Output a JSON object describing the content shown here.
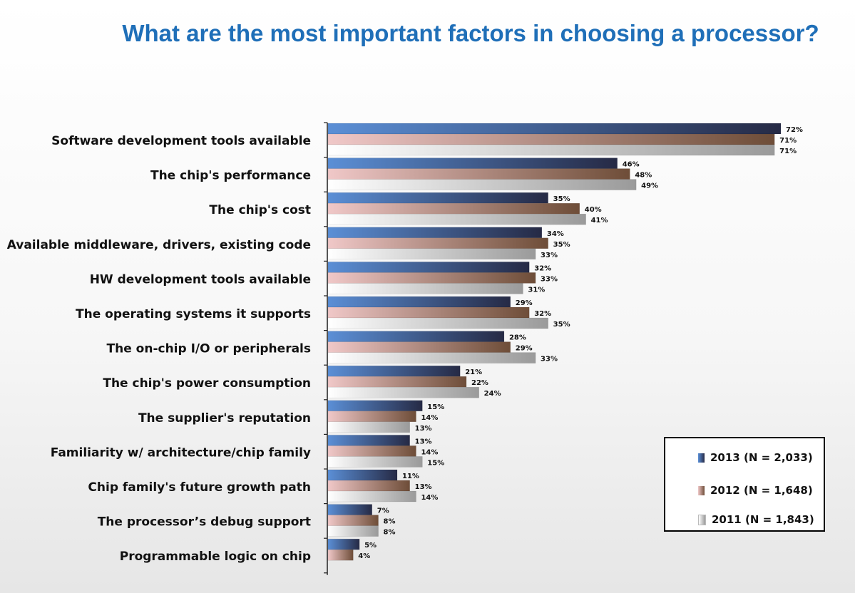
{
  "colors": {
    "title": "#1f6fb8",
    "series_2013": [
      "#5b8fd6",
      "#262a45"
    ],
    "series_2012": [
      "#f0c8c8",
      "#6e4d38"
    ],
    "series_2011": [
      "#ffffff",
      "#9a9a9a"
    ]
  },
  "chart_data": {
    "type": "bar",
    "orientation": "horizontal",
    "title": "What are the most important factors in choosing a processor?",
    "categories": [
      "Software development tools available",
      "The chip's performance",
      "The chip's cost",
      "Available middleware, drivers, existing code",
      "HW development tools available",
      "The operating systems it supports",
      "The on-chip I/O or peripherals",
      "The chip's power consumption",
      "The supplier's reputation",
      "Familiarity w/ architecture/chip family",
      "Chip family's future growth path",
      "The processor’s debug support",
      "Programmable logic on chip"
    ],
    "series": [
      {
        "name": "2013 (N = 2,033)",
        "values": [
          72,
          46,
          35,
          34,
          32,
          29,
          28,
          21,
          15,
          13,
          11,
          7,
          5
        ]
      },
      {
        "name": "2012 (N = 1,648)",
        "values": [
          71,
          48,
          40,
          35,
          33,
          32,
          29,
          22,
          14,
          14,
          13,
          8,
          4
        ]
      },
      {
        "name": "2011 (N = 1,843)",
        "values": [
          71,
          49,
          41,
          33,
          31,
          35,
          33,
          24,
          13,
          15,
          14,
          8,
          null
        ]
      }
    ],
    "value_labels": [
      [
        "72%",
        "46%",
        "35%",
        "34%",
        "32%",
        "29%",
        "28%",
        "21%",
        "15%",
        "13%",
        "11%",
        "7%",
        "5%"
      ],
      [
        "71%",
        "48%",
        "40%",
        "35%",
        "33%",
        "32%",
        "29%",
        "22%",
        "14%",
        "14%",
        "13%",
        "8%",
        "4%"
      ],
      [
        "71%",
        "49%",
        "41%",
        "33%",
        "31%",
        "35%",
        "33%",
        "24%",
        "13%",
        "15%",
        "14%",
        "8%",
        ""
      ]
    ],
    "xlim": [
      0,
      75
    ],
    "grid": false,
    "legend": "bottom-right"
  }
}
